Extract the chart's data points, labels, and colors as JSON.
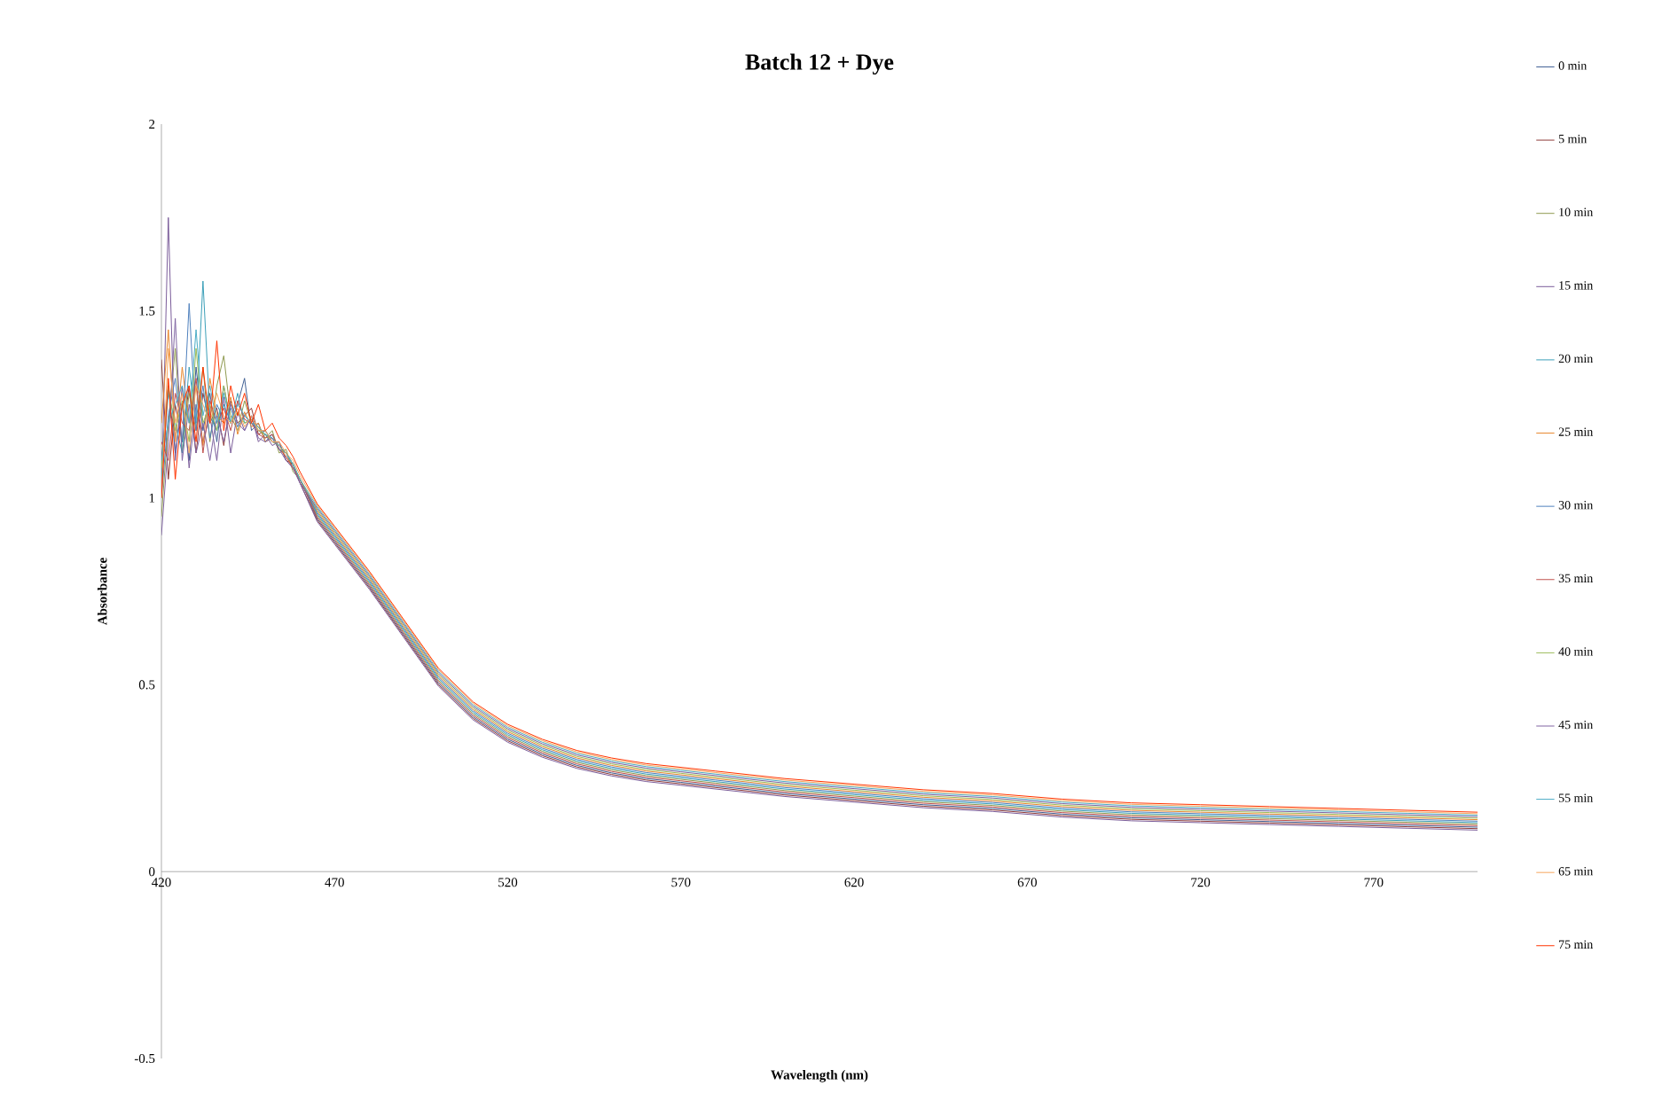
{
  "chart_data": {
    "type": "line",
    "title": "Batch 12 + Dye",
    "xlabel": "Wavelength (nm)",
    "ylabel": "Absorbance",
    "xlim": [
      420,
      800
    ],
    "xticks": [
      420,
      470,
      520,
      570,
      620,
      670,
      720,
      770
    ],
    "ylim": [
      -0.5,
      2
    ],
    "yticks": [
      -0.5,
      0,
      0.5,
      1,
      1.5,
      2
    ],
    "legend": "right",
    "x": [
      420,
      422,
      424,
      426,
      428,
      430,
      432,
      434,
      436,
      438,
      440,
      442,
      444,
      446,
      448,
      450,
      452,
      454,
      456,
      458,
      460,
      465,
      470,
      480,
      490,
      500,
      510,
      520,
      530,
      540,
      550,
      560,
      570,
      580,
      590,
      600,
      620,
      640,
      660,
      680,
      700,
      720,
      740,
      760,
      780,
      800
    ],
    "series": [
      {
        "name": "0 min",
        "color": "#3f5f94",
        "values": [
          1.1,
          1.3,
          1.12,
          1.25,
          1.1,
          1.35,
          1.18,
          1.28,
          1.15,
          1.3,
          1.2,
          1.25,
          1.32,
          1.18,
          1.2,
          1.15,
          1.17,
          1.13,
          1.12,
          1.08,
          1.05,
          0.944,
          0.884,
          0.764,
          0.634,
          0.504,
          0.414,
          0.354,
          0.314,
          0.284,
          0.264,
          0.249,
          0.239,
          0.229,
          0.219,
          0.209,
          0.194,
          0.179,
          0.169,
          0.154,
          0.144,
          0.139,
          0.134,
          0.129,
          0.124,
          0.119
        ]
      },
      {
        "name": "5 min",
        "color": "#8e3a38",
        "values": [
          1.37,
          1.05,
          1.25,
          1.15,
          1.3,
          1.12,
          1.28,
          1.2,
          1.24,
          1.14,
          1.26,
          1.2,
          1.22,
          1.24,
          1.17,
          1.18,
          1.15,
          1.15,
          1.1,
          1.09,
          1.04,
          0.94,
          0.88,
          0.76,
          0.63,
          0.5,
          0.41,
          0.35,
          0.31,
          0.28,
          0.26,
          0.245,
          0.235,
          0.225,
          0.215,
          0.205,
          0.19,
          0.175,
          0.165,
          0.15,
          0.14,
          0.135,
          0.13,
          0.125,
          0.12,
          0.115
        ]
      },
      {
        "name": "10 min",
        "color": "#8f9a4f",
        "values": [
          0.95,
          1.2,
          1.4,
          1.12,
          1.28,
          1.18,
          1.35,
          1.15,
          1.3,
          1.38,
          1.22,
          1.18,
          1.26,
          1.2,
          1.19,
          1.16,
          1.18,
          1.12,
          1.13,
          1.07,
          1.05,
          0.952,
          0.892,
          0.772,
          0.642,
          0.512,
          0.422,
          0.362,
          0.322,
          0.292,
          0.272,
          0.257,
          0.247,
          0.237,
          0.227,
          0.217,
          0.202,
          0.187,
          0.177,
          0.162,
          0.152,
          0.147,
          0.142,
          0.137,
          0.132,
          0.127
        ]
      },
      {
        "name": "15 min",
        "color": "#7a5c9a",
        "values": [
          1.0,
          1.75,
          1.1,
          1.3,
          1.08,
          1.25,
          1.15,
          1.22,
          1.1,
          1.27,
          1.12,
          1.23,
          1.18,
          1.22,
          1.15,
          1.17,
          1.14,
          1.15,
          1.1,
          1.08,
          1.04,
          0.936,
          0.876,
          0.756,
          0.626,
          0.496,
          0.406,
          0.346,
          0.306,
          0.276,
          0.256,
          0.241,
          0.231,
          0.221,
          0.211,
          0.201,
          0.186,
          0.171,
          0.161,
          0.146,
          0.136,
          0.131,
          0.126,
          0.121,
          0.116,
          0.111
        ]
      },
      {
        "name": "20 min",
        "color": "#3a9fb8",
        "values": [
          1.05,
          1.28,
          1.2,
          1.12,
          1.35,
          1.2,
          1.58,
          1.22,
          1.18,
          1.25,
          1.2,
          1.28,
          1.2,
          1.21,
          1.18,
          1.17,
          1.16,
          1.13,
          1.12,
          1.09,
          1.05,
          0.956,
          0.896,
          0.776,
          0.646,
          0.516,
          0.426,
          0.366,
          0.326,
          0.296,
          0.276,
          0.261,
          0.251,
          0.241,
          0.231,
          0.221,
          0.206,
          0.191,
          0.181,
          0.166,
          0.156,
          0.151,
          0.146,
          0.141,
          0.136,
          0.131
        ]
      },
      {
        "name": "25 min",
        "color": "#e8882e",
        "values": [
          1.2,
          1.45,
          1.15,
          1.35,
          1.2,
          1.3,
          1.14,
          1.32,
          1.22,
          1.2,
          1.27,
          1.17,
          1.23,
          1.19,
          1.2,
          1.15,
          1.16,
          1.14,
          1.11,
          1.08,
          1.05,
          0.964,
          0.904,
          0.784,
          0.654,
          0.524,
          0.434,
          0.374,
          0.334,
          0.304,
          0.284,
          0.269,
          0.259,
          0.249,
          0.239,
          0.229,
          0.214,
          0.199,
          0.189,
          0.174,
          0.164,
          0.159,
          0.154,
          0.149,
          0.144,
          0.139
        ]
      },
      {
        "name": "30 min",
        "color": "#4f81bd",
        "values": [
          1.0,
          1.22,
          1.32,
          1.15,
          1.52,
          1.18,
          1.3,
          1.16,
          1.25,
          1.21,
          1.24,
          1.19,
          1.22,
          1.2,
          1.18,
          1.18,
          1.15,
          1.14,
          1.12,
          1.09,
          1.05,
          0.96,
          0.9,
          0.78,
          0.65,
          0.52,
          0.43,
          0.37,
          0.33,
          0.3,
          0.28,
          0.265,
          0.255,
          0.245,
          0.235,
          0.225,
          0.21,
          0.195,
          0.185,
          0.17,
          0.16,
          0.155,
          0.15,
          0.145,
          0.14,
          0.135
        ]
      },
      {
        "name": "35 min",
        "color": "#c0504d",
        "values": [
          1.15,
          1.1,
          1.28,
          1.2,
          1.18,
          1.32,
          1.12,
          1.26,
          1.2,
          1.24,
          1.18,
          1.26,
          1.21,
          1.2,
          1.17,
          1.16,
          1.17,
          1.13,
          1.11,
          1.08,
          1.05,
          0.948,
          0.888,
          0.768,
          0.638,
          0.508,
          0.418,
          0.358,
          0.318,
          0.288,
          0.268,
          0.253,
          0.243,
          0.233,
          0.223,
          0.213,
          0.198,
          0.183,
          0.173,
          0.158,
          0.148,
          0.143,
          0.138,
          0.133,
          0.128,
          0.123
        ]
      },
      {
        "name": "40 min",
        "color": "#9bbb59",
        "values": [
          1.08,
          1.3,
          1.18,
          1.26,
          1.15,
          1.4,
          1.2,
          1.25,
          1.18,
          1.3,
          1.2,
          1.23,
          1.2,
          1.21,
          1.18,
          1.17,
          1.15,
          1.14,
          1.12,
          1.09,
          1.05,
          0.968,
          0.908,
          0.788,
          0.658,
          0.528,
          0.438,
          0.378,
          0.338,
          0.308,
          0.288,
          0.273,
          0.263,
          0.253,
          0.243,
          0.233,
          0.218,
          0.203,
          0.193,
          0.178,
          0.168,
          0.163,
          0.158,
          0.153,
          0.148,
          0.143
        ]
      },
      {
        "name": "45 min",
        "color": "#8064a2",
        "values": [
          0.9,
          1.15,
          1.48,
          1.1,
          1.25,
          1.12,
          1.2,
          1.1,
          1.22,
          1.15,
          1.25,
          1.2,
          1.18,
          1.22,
          1.16,
          1.15,
          1.16,
          1.13,
          1.1,
          1.08,
          1.04,
          0.972,
          0.912,
          0.792,
          0.662,
          0.532,
          0.442,
          0.382,
          0.342,
          0.312,
          0.292,
          0.277,
          0.267,
          0.257,
          0.247,
          0.237,
          0.222,
          0.207,
          0.197,
          0.182,
          0.172,
          0.167,
          0.162,
          0.157,
          0.152,
          0.147
        ]
      },
      {
        "name": "55 min",
        "color": "#4bacc6",
        "values": [
          1.1,
          1.2,
          1.25,
          1.3,
          1.2,
          1.45,
          1.22,
          1.3,
          1.2,
          1.28,
          1.2,
          1.25,
          1.22,
          1.2,
          1.19,
          1.17,
          1.16,
          1.14,
          1.12,
          1.09,
          1.05,
          0.976,
          0.916,
          0.796,
          0.666,
          0.536,
          0.446,
          0.386,
          0.346,
          0.316,
          0.296,
          0.281,
          0.271,
          0.261,
          0.251,
          0.241,
          0.226,
          0.211,
          0.201,
          0.186,
          0.176,
          0.171,
          0.166,
          0.161,
          0.156,
          0.151
        ]
      },
      {
        "name": "65 min",
        "color": "#f7a85e",
        "values": [
          1.0,
          1.4,
          1.2,
          1.28,
          1.12,
          1.3,
          1.25,
          1.2,
          1.28,
          1.22,
          1.2,
          1.24,
          1.19,
          1.22,
          1.18,
          1.18,
          1.15,
          1.15,
          1.12,
          1.1,
          1.06,
          0.98,
          0.92,
          0.8,
          0.67,
          0.54,
          0.45,
          0.39,
          0.35,
          0.32,
          0.3,
          0.285,
          0.275,
          0.265,
          0.255,
          0.245,
          0.23,
          0.215,
          0.205,
          0.19,
          0.18,
          0.175,
          0.17,
          0.165,
          0.16,
          0.155
        ]
      },
      {
        "name": "75 min",
        "color": "#ff3300",
        "values": [
          1.0,
          1.32,
          1.05,
          1.25,
          1.3,
          1.15,
          1.35,
          1.2,
          1.42,
          1.18,
          1.3,
          1.22,
          1.28,
          1.2,
          1.25,
          1.18,
          1.2,
          1.16,
          1.14,
          1.11,
          1.07,
          0.984,
          0.924,
          0.804,
          0.674,
          0.544,
          0.454,
          0.394,
          0.354,
          0.324,
          0.304,
          0.289,
          0.279,
          0.269,
          0.259,
          0.249,
          0.234,
          0.219,
          0.209,
          0.194,
          0.184,
          0.179,
          0.174,
          0.169,
          0.164,
          0.159
        ]
      }
    ]
  }
}
